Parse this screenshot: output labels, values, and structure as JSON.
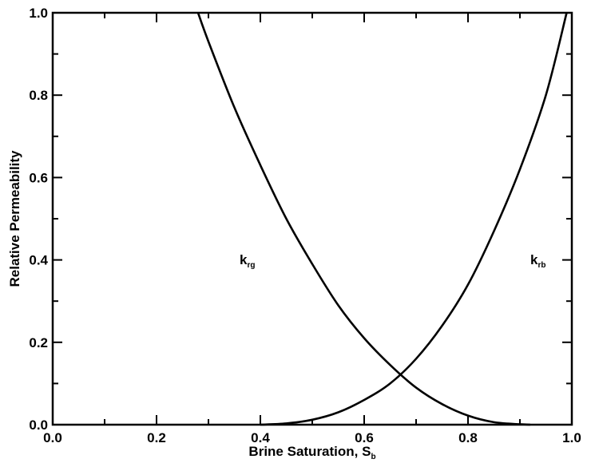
{
  "chart_data": {
    "type": "line",
    "title": "",
    "xlabel": "Brine Saturation, S",
    "xlabel_subscript": "b",
    "ylabel": "Relative Permeability",
    "xlim": [
      0.0,
      1.0
    ],
    "ylim": [
      0.0,
      1.0
    ],
    "x_ticks": [
      "0.0",
      "0.2",
      "0.4",
      "0.6",
      "0.8",
      "1.0"
    ],
    "y_ticks": [
      "0.0",
      "0.2",
      "0.4",
      "0.6",
      "0.8",
      "1.0"
    ],
    "grid": false,
    "legend": "none",
    "series": [
      {
        "name": "k_rg",
        "label_main": "k",
        "label_sub": "rg",
        "label_at": [
          0.36,
          0.39
        ],
        "x": [
          0.28,
          0.3,
          0.35,
          0.4,
          0.45,
          0.5,
          0.55,
          0.6,
          0.65,
          0.7,
          0.75,
          0.8,
          0.85,
          0.9,
          0.92
        ],
        "y": [
          1.0,
          0.93,
          0.77,
          0.63,
          0.5,
          0.39,
          0.29,
          0.21,
          0.145,
          0.09,
          0.05,
          0.022,
          0.006,
          0.001,
          0.0
        ]
      },
      {
        "name": "k_rb",
        "label_main": "k",
        "label_sub": "rb",
        "label_at": [
          0.92,
          0.39
        ],
        "x": [
          0.4,
          0.45,
          0.5,
          0.55,
          0.6,
          0.65,
          0.7,
          0.75,
          0.8,
          0.85,
          0.9,
          0.95,
          0.99
        ],
        "y": [
          0.0,
          0.003,
          0.012,
          0.03,
          0.06,
          0.1,
          0.16,
          0.24,
          0.34,
          0.47,
          0.62,
          0.8,
          1.0
        ]
      }
    ]
  }
}
